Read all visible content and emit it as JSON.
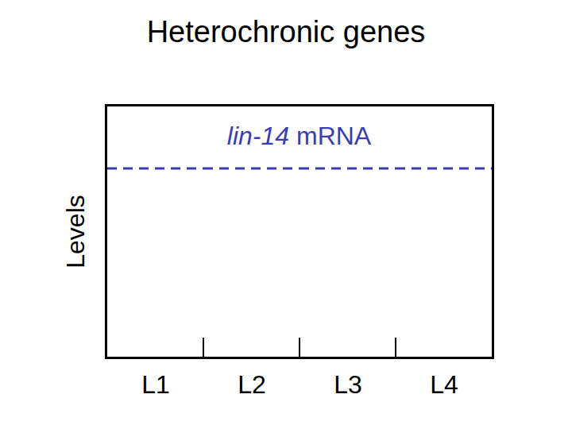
{
  "chart_data": {
    "type": "line",
    "title": "Heterochronic genes",
    "y_label": "Levels",
    "categories": [
      "L1",
      "L2",
      "L3",
      "L4"
    ],
    "series": [
      {
        "name": "lin-14 mRNA",
        "color": "#3c3cb4",
        "line_style": "dashed",
        "values": [
          0.75,
          0.75,
          0.75,
          0.75
        ]
      }
    ],
    "ylim": [
      0,
      1
    ],
    "tick_labels": "x",
    "grid": false
  }
}
